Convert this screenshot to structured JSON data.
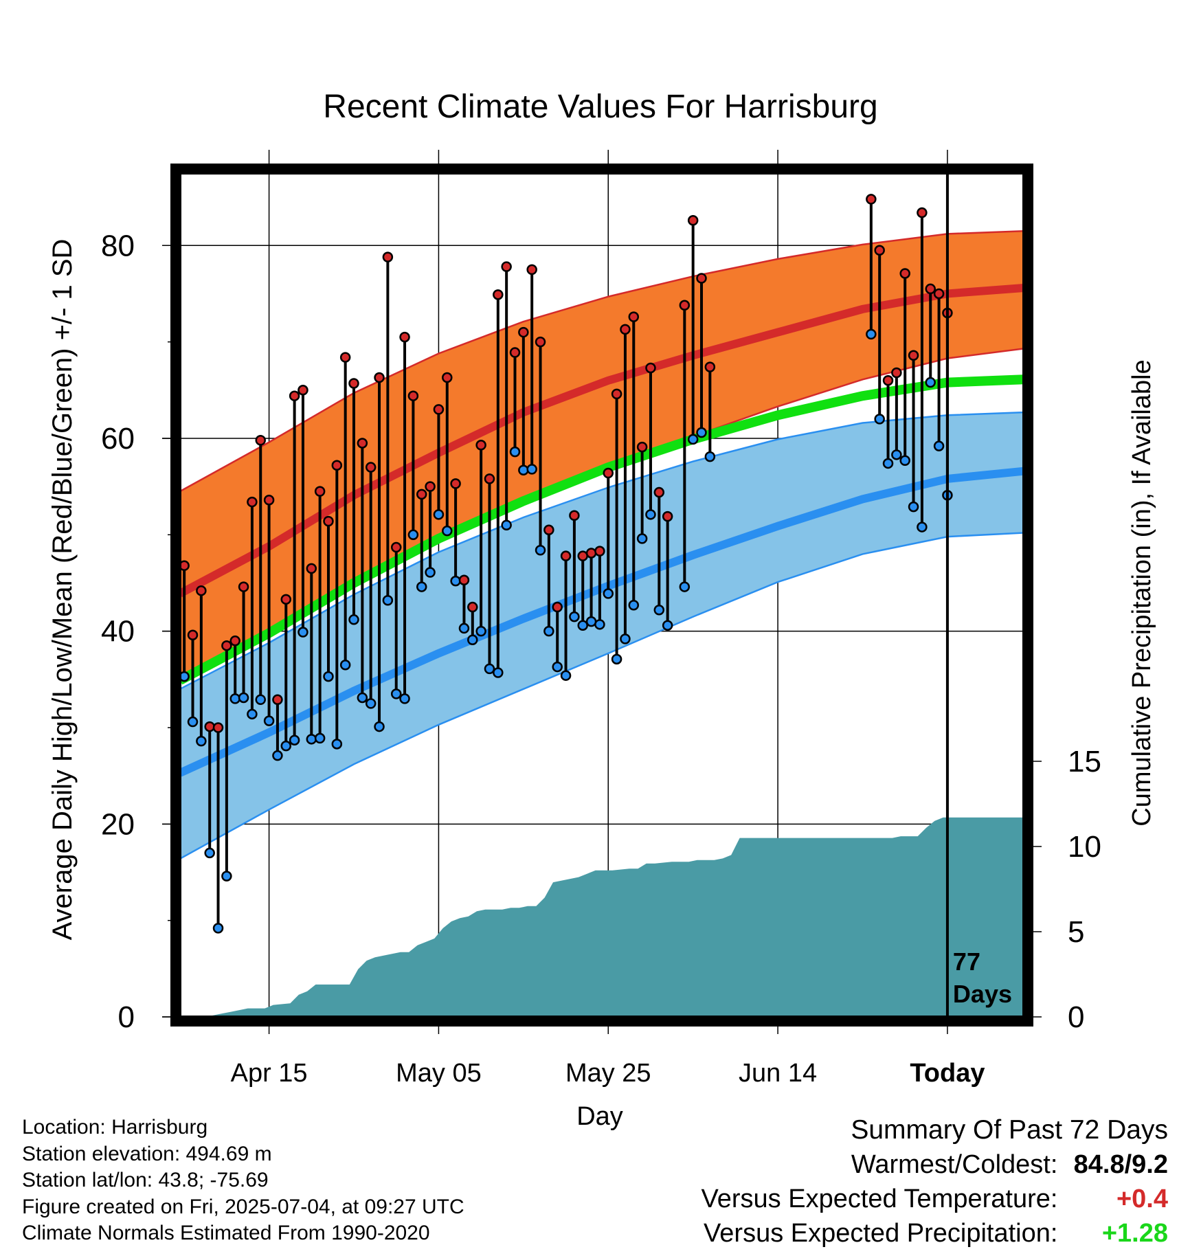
{
  "title": "Recent Climate Values For Harrisburg",
  "footer": {
    "location": "Location: Harrisburg",
    "elevation": "Station elevation: 494.69 m",
    "latlon": "Station lat/lon: 43.8; -75.69",
    "created": "Figure created on Fri, 2025-07-04, at 09:27 UTC",
    "normals": "Climate Normals Estimated From 1990-2020"
  },
  "summary": {
    "heading": "Summary Of Past 72 Days",
    "warmest_label": "Warmest/Coldest:",
    "warmest_value": "84.8/9.2",
    "temp_label": "Versus Expected Temperature:",
    "temp_value": "+0.4",
    "temp_color": "#d42a2a",
    "precip_label": "Versus Expected Precipitation:",
    "precip_value": "+1.28",
    "precip_color": "#1ad61a"
  },
  "chart_data": {
    "type": "line",
    "title": "Recent Climate Values For Harrisburg",
    "xlabel": "Day",
    "ylabel": "Average Daily High/Low/Mean (Red/Blue/Green) +/- 1 SD",
    "y2label": "Cumulative Precipitation (in), If Available",
    "x_ticks": [
      "Apr 15",
      "May 05",
      "May 25",
      "Jun 14",
      "Today"
    ],
    "x_tick_days": [
      10,
      30,
      50,
      70,
      90
    ],
    "xlim": [
      -0.5,
      99
    ],
    "ylim": [
      0,
      88
    ],
    "y_ticks": [
      0,
      20,
      40,
      60,
      80
    ],
    "y2lim": [
      0,
      20
    ],
    "y2_ticks": [
      0,
      5,
      10,
      15
    ],
    "grid": true,
    "today_day": 90,
    "today_label_line1": "77",
    "today_label_line2": "Days",
    "colors": {
      "high_band": "#f47a2c",
      "high_line": "#d42a2a",
      "low_band": "#85c3e8",
      "low_line": "#2a8ff0",
      "mean_line": "#10e010",
      "precip": "#4a9ba5",
      "high_dot": "#d42a2a",
      "low_dot": "#2a8ff0"
    },
    "normals": {
      "days": [
        -0.5,
        10,
        20,
        30,
        40,
        50,
        60,
        70,
        80,
        90,
        99
      ],
      "high_upper": [
        54.5,
        59.6,
        64.7,
        68.8,
        72.1,
        74.7,
        76.8,
        78.6,
        80.1,
        81.2,
        81.5
      ],
      "high_mean": [
        43.9,
        48.8,
        54.1,
        58.5,
        62.7,
        66.0,
        68.6,
        71.0,
        73.4,
        75.0,
        75.6
      ],
      "high_lower": [
        34.7,
        39.7,
        45.0,
        49.8,
        53.7,
        57.2,
        60.2,
        63.3,
        66.1,
        68.3,
        69.3
      ],
      "mean": [
        34.9,
        39.8,
        45.0,
        49.6,
        53.5,
        57.0,
        59.9,
        62.4,
        64.4,
        65.8,
        66.1
      ],
      "low_upper": [
        34.0,
        38.8,
        43.8,
        48.2,
        51.8,
        54.9,
        57.6,
        59.9,
        61.6,
        62.4,
        62.7
      ],
      "low_mean": [
        25.3,
        29.5,
        33.8,
        37.7,
        41.3,
        44.7,
        47.9,
        50.9,
        53.7,
        55.8,
        56.6
      ],
      "low_lower": [
        16.4,
        21.5,
        26.2,
        30.3,
        34.0,
        37.7,
        41.5,
        45.1,
        48.0,
        49.8,
        50.2
      ]
    },
    "observations": [
      {
        "day": 0,
        "high": 46.8,
        "low": 35.3
      },
      {
        "day": 1,
        "high": 39.6,
        "low": 30.6
      },
      {
        "day": 2,
        "high": 44.2,
        "low": 28.6
      },
      {
        "day": 3,
        "high": 30.1,
        "low": 17.0
      },
      {
        "day": 4,
        "high": 30.0,
        "low": 9.2
      },
      {
        "day": 5,
        "high": 38.5,
        "low": 14.6
      },
      {
        "day": 6,
        "high": 39.0,
        "low": 33.0
      },
      {
        "day": 7,
        "high": 44.6,
        "low": 33.1
      },
      {
        "day": 8,
        "high": 53.4,
        "low": 31.4
      },
      {
        "day": 9,
        "high": 59.8,
        "low": 32.9
      },
      {
        "day": 10,
        "high": 53.6,
        "low": 30.7
      },
      {
        "day": 11,
        "high": 32.9,
        "low": 27.1
      },
      {
        "day": 12,
        "high": 43.3,
        "low": 28.1
      },
      {
        "day": 13,
        "high": 64.4,
        "low": 28.7
      },
      {
        "day": 14,
        "high": 65.0,
        "low": 39.9
      },
      {
        "day": 15,
        "high": 46.5,
        "low": 28.8
      },
      {
        "day": 16,
        "high": 54.5,
        "low": 28.9
      },
      {
        "day": 17,
        "high": 51.4,
        "low": 35.3
      },
      {
        "day": 18,
        "high": 57.2,
        "low": 28.3
      },
      {
        "day": 19,
        "high": 68.4,
        "low": 36.5
      },
      {
        "day": 20,
        "high": 65.7,
        "low": 41.2
      },
      {
        "day": 21,
        "high": 59.5,
        "low": 33.1
      },
      {
        "day": 22,
        "high": 57.0,
        "low": 32.5
      },
      {
        "day": 23,
        "high": 66.3,
        "low": 30.1
      },
      {
        "day": 24,
        "high": 78.8,
        "low": 43.2
      },
      {
        "day": 25,
        "high": 48.7,
        "low": 33.5
      },
      {
        "day": 26,
        "high": 70.5,
        "low": 33.0
      },
      {
        "day": 27,
        "high": 64.4,
        "low": 50.0
      },
      {
        "day": 28,
        "high": 54.2,
        "low": 44.6
      },
      {
        "day": 29,
        "high": 55.0,
        "low": 46.1
      },
      {
        "day": 30,
        "high": 63.0,
        "low": 52.1
      },
      {
        "day": 31,
        "high": 66.3,
        "low": 50.4
      },
      {
        "day": 32,
        "high": 55.3,
        "low": 45.2
      },
      {
        "day": 33,
        "high": 45.3,
        "low": 40.3
      },
      {
        "day": 34,
        "high": 42.5,
        "low": 39.1
      },
      {
        "day": 35,
        "high": 59.3,
        "low": 40.0
      },
      {
        "day": 36,
        "high": 55.8,
        "low": 36.1
      },
      {
        "day": 37,
        "high": 74.9,
        "low": 35.7
      },
      {
        "day": 38,
        "high": 77.8,
        "low": 51.0
      },
      {
        "day": 39,
        "high": 68.9,
        "low": 58.6
      },
      {
        "day": 40,
        "high": 71.0,
        "low": 56.7
      },
      {
        "day": 41,
        "high": 77.5,
        "low": 56.8
      },
      {
        "day": 42,
        "high": 70.0,
        "low": 48.4
      },
      {
        "day": 43,
        "high": 50.5,
        "low": 40.0
      },
      {
        "day": 44,
        "high": 42.5,
        "low": 36.3
      },
      {
        "day": 45,
        "high": 47.8,
        "low": 35.4
      },
      {
        "day": 46,
        "high": 52.0,
        "low": 41.5
      },
      {
        "day": 47,
        "high": 47.8,
        "low": 40.6
      },
      {
        "day": 48,
        "high": 48.1,
        "low": 41.0
      },
      {
        "day": 49,
        "high": 48.3,
        "low": 40.7
      },
      {
        "day": 50,
        "high": 56.4,
        "low": 43.9
      },
      {
        "day": 51,
        "high": 64.6,
        "low": 37.1
      },
      {
        "day": 52,
        "high": 71.3,
        "low": 39.2
      },
      {
        "day": 53,
        "high": 72.6,
        "low": 42.7
      },
      {
        "day": 54,
        "high": 59.1,
        "low": 49.6
      },
      {
        "day": 55,
        "high": 67.3,
        "low": 52.1
      },
      {
        "day": 56,
        "high": 54.4,
        "low": 42.2
      },
      {
        "day": 57,
        "high": 51.9,
        "low": 40.6
      },
      {
        "day": 59,
        "high": 73.8,
        "low": 44.6
      },
      {
        "day": 60,
        "high": 82.6,
        "low": 59.9
      },
      {
        "day": 61,
        "high": 76.6,
        "low": 60.6
      },
      {
        "day": 62,
        "high": 67.4,
        "low": 58.1
      },
      {
        "day": 81,
        "high": 84.8,
        "low": 70.8
      },
      {
        "day": 82,
        "high": 79.5,
        "low": 62.0
      },
      {
        "day": 83,
        "high": 66.0,
        "low": 57.4
      },
      {
        "day": 84,
        "high": 66.8,
        "low": 58.3
      },
      {
        "day": 85,
        "high": 77.1,
        "low": 57.7
      },
      {
        "day": 86,
        "high": 68.6,
        "low": 52.9
      },
      {
        "day": 87,
        "high": 83.4,
        "low": 50.8
      },
      {
        "day": 88,
        "high": 75.5,
        "low": 65.8
      },
      {
        "day": 89,
        "high": 75.0,
        "low": 59.2
      },
      {
        "day": 90,
        "high": 73.0,
        "low": 54.1
      }
    ],
    "precip_cumulative": {
      "days": [
        -0.5,
        2.5,
        3.5,
        4.5,
        5.5,
        6.5,
        7.5,
        9.5,
        10.5,
        12.5,
        13.5,
        14.5,
        15.5,
        16.5,
        19.5,
        20.5,
        21.5,
        22.5,
        23.5,
        25.5,
        26.5,
        27.5,
        28.5,
        29.5,
        30.5,
        31.5,
        32.5,
        33.5,
        34.5,
        35.5,
        36.5,
        37.5,
        38.5,
        39.5,
        40.5,
        41.5,
        42.5,
        43.5,
        44.5,
        45.5,
        46.5,
        47.5,
        48.5,
        50.5,
        52.5,
        53.5,
        54.5,
        55.5,
        57.5,
        59.5,
        60.5,
        62.5,
        63.5,
        64.5,
        65.5,
        68.5,
        80.5,
        83.5,
        84.5,
        85.5,
        86.5,
        87.5,
        88.5,
        89.5,
        99
      ],
      "values": [
        0,
        0,
        0.1,
        0.2,
        0.3,
        0.4,
        0.5,
        0.5,
        0.7,
        0.8,
        1.3,
        1.5,
        1.9,
        1.9,
        1.9,
        2.8,
        3.3,
        3.5,
        3.6,
        3.8,
        3.8,
        4.2,
        4.4,
        4.6,
        5.2,
        5.6,
        5.8,
        5.9,
        6.2,
        6.3,
        6.3,
        6.3,
        6.4,
        6.4,
        6.5,
        6.5,
        7.0,
        7.9,
        8.0,
        8.1,
        8.2,
        8.4,
        8.6,
        8.6,
        8.7,
        8.7,
        9.0,
        9.0,
        9.1,
        9.1,
        9.2,
        9.2,
        9.3,
        9.5,
        10.5,
        10.5,
        10.5,
        10.5,
        10.6,
        10.6,
        10.6,
        11.1,
        11.5,
        11.7,
        11.7
      ]
    }
  }
}
